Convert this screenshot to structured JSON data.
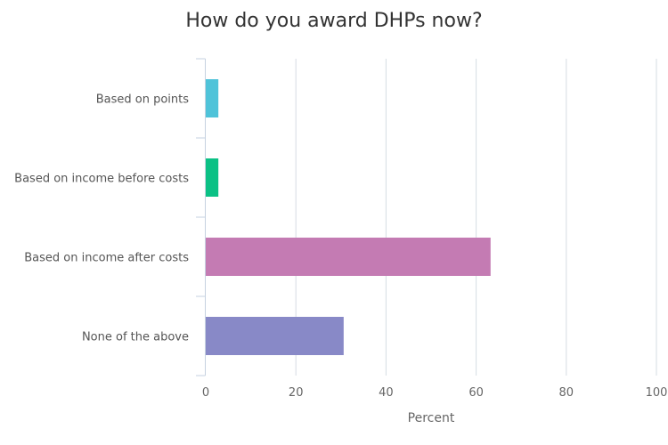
{
  "chart_data": {
    "type": "bar",
    "orientation": "horizontal",
    "title": "How do you award DHPs now?",
    "xlabel": "Percent",
    "ylabel": "",
    "categories": [
      "Based on points",
      "Based on income before costs",
      "Based on income after costs",
      "None of the above"
    ],
    "values": [
      2.8,
      2.8,
      63.2,
      30.6
    ],
    "colors": [
      "#4fc3d9",
      "#0bc185",
      "#c47bb3",
      "#8889c7"
    ],
    "xlim": [
      0,
      100
    ],
    "xticks": [
      0,
      20,
      40,
      60,
      80,
      100
    ],
    "grid": true,
    "legend": "none"
  }
}
